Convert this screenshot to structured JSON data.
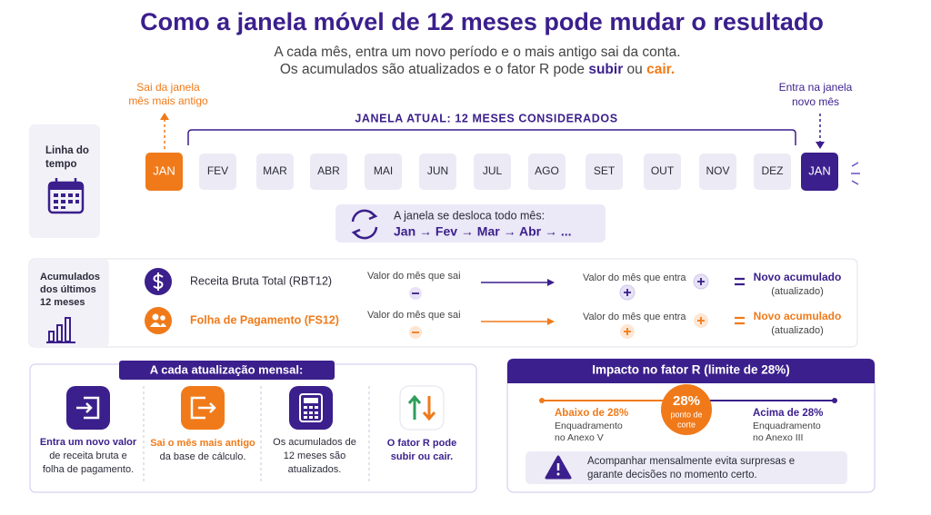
{
  "header": {
    "title": "Como a janela móvel de 12 meses pode mudar o resultado",
    "subtitle_line1": "A cada mês, entra um novo período e o mais antigo sai da conta.",
    "subtitle_line2": [
      "Os acumulados são atualizados e o fator R pode ",
      "subir",
      " ou ",
      "cair."
    ]
  },
  "timeline": {
    "label": [
      "Linha do",
      "tempo"
    ],
    "exit_label": [
      "Sai da janela",
      "mês mais antigo"
    ],
    "entry_label": [
      "Entra na janela",
      "novo mês"
    ],
    "window_label": "JANELA ATUAL: 12 MESES CONSIDERADOS",
    "months": [
      "JAN",
      "FEV",
      "MAR",
      "ABR",
      "MAI",
      "JUN",
      "JUL",
      "AGO",
      "SET",
      "OUT",
      "NOV",
      "DEZ",
      "JAN"
    ],
    "shift_note": {
      "title": "A janela se desloca todo mês:",
      "sequence": "Jan → Fev → Mar → Abr → ..."
    }
  },
  "accumulated": {
    "label": [
      "Acumulados",
      "dos últimos",
      "12 meses"
    ],
    "rows": [
      {
        "name": "Receita Bruta Total (RBT12)",
        "out_label": "Valor do mês que sai",
        "in_label": "Valor do mês que entra",
        "result": "Novo acumulado",
        "result_note": "(atualizado)"
      },
      {
        "name": "Folha de Pagamento (FS12)",
        "out_label": "Valor do mês que sai",
        "in_label": "Valor do mês que entra",
        "result": "Novo acumulado",
        "result_note": "(atualizado)"
      }
    ]
  },
  "monthly_update": {
    "title": "A cada atualização mensal:",
    "steps": [
      [
        "Entra um novo valor",
        "de receita bruta e",
        "folha de pagamento."
      ],
      [
        "Sai o mês mais antigo",
        "da base de cálculo."
      ],
      [
        "Os acumulados de",
        "12 meses são",
        "atualizados."
      ],
      [
        "O fator R pode",
        "subir ou cair."
      ]
    ]
  },
  "factor_r": {
    "title": "Impacto no fator R (limite de 28%)",
    "threshold": {
      "value": "28%",
      "label": [
        "ponto de",
        "corte"
      ]
    },
    "below": [
      "Abaixo de 28%",
      "Enquadramento",
      "no Anexo V"
    ],
    "above": [
      "Acima de 28%",
      "Enquadramento",
      "no Anexo III"
    ],
    "note": [
      "Acompanhar mensalmente evita surpresas e",
      "garante decisões no momento certo."
    ]
  }
}
